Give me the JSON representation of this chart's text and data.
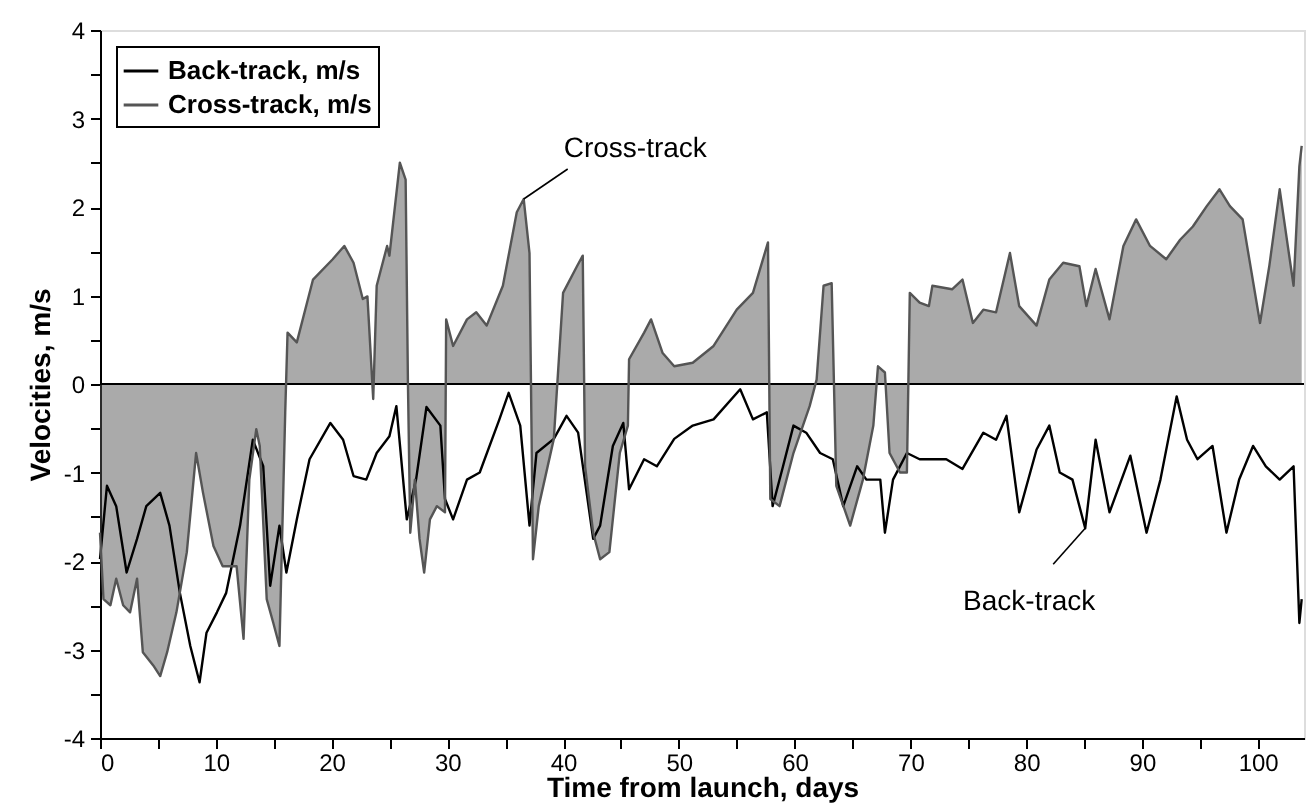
{
  "chart_data": {
    "type": "line",
    "xlabel": "Time from launch, days",
    "ylabel": "Velocities, m/s",
    "xlim": [
      0,
      104
    ],
    "ylim": [
      -4,
      4
    ],
    "xticks": [
      0,
      {
        "value": 5,
        "label": null
      },
      10,
      {
        "value": 15,
        "label": null
      },
      20,
      {
        "value": 25,
        "label": null
      },
      30,
      {
        "value": 35,
        "label": null
      },
      40,
      {
        "value": 45,
        "label": null
      },
      50,
      {
        "value": 55,
        "label": null
      },
      60,
      {
        "value": 65,
        "label": null
      },
      70,
      {
        "value": 75,
        "label": null
      },
      80,
      {
        "value": 85,
        "label": null
      },
      90,
      {
        "value": 95,
        "label": null
      },
      100
    ],
    "yticks": [
      -4,
      {
        "value": -3.5,
        "label": null
      },
      -3,
      {
        "value": -2.5,
        "label": null
      },
      -2,
      {
        "value": -1.5,
        "label": null
      },
      -1,
      {
        "value": -0.5,
        "label": null
      },
      0,
      {
        "value": 0.5,
        "label": null
      },
      1,
      {
        "value": 1.5,
        "label": null
      },
      2,
      {
        "value": 2.5,
        "label": null
      },
      3,
      {
        "value": 3.5,
        "label": null
      },
      4
    ],
    "grid": false,
    "legend": "top left",
    "marker": "none",
    "line_style": "solid",
    "ref_lines": [
      {
        "axis": "y",
        "value": 0,
        "label": null,
        "color": "#000000"
      }
    ],
    "annotations": [
      {
        "text": "Cross-track",
        "x": 36.6,
        "y": 2.09
      },
      {
        "text": "Back-track",
        "x": 85.1,
        "y": -1.63
      }
    ],
    "series": [
      {
        "name": "Back-track, m/s",
        "color": "#000000",
        "x": [
          0,
          0.6,
          1.4,
          2.3,
          3.2,
          4.0,
          5.2,
          6.0,
          6.9,
          7.8,
          8.6,
          9.2,
          10.1,
          10.9,
          12.1,
          13.2,
          14.1,
          14.7,
          15.5,
          16.1,
          17,
          18.1,
          19.9,
          21,
          21.9,
          23,
          23.9,
          25,
          25.6,
          26.5,
          27.3,
          28.2,
          29.4,
          29.8,
          30.5,
          31.7,
          32.8,
          34.5,
          35.3,
          36.3,
          37.1,
          37.7,
          39.2,
          40.3,
          41.3,
          42.6,
          43.2,
          44.3,
          45.2,
          45.7,
          47,
          48.1,
          49.6,
          51.2,
          53,
          55.3,
          56.4,
          57.6,
          58.1,
          59,
          59.9,
          61,
          62.2,
          63.3,
          64.2,
          65.4,
          66.2,
          67.4,
          67.8,
          68.5,
          69.7,
          70.8,
          73.1,
          74.5,
          76.3,
          77.4,
          78.3,
          79.4,
          80.9,
          82,
          82.9,
          84,
          85.1,
          86,
          87.2,
          89,
          90.4,
          91.6,
          93,
          93.9,
          94.8,
          96.1,
          97.3,
          98.4,
          99.6,
          100.7,
          101.9,
          103.1,
          103.6,
          103.8
        ],
        "values": [
          -1.98,
          -1.15,
          -1.38,
          -2.13,
          -1.75,
          -1.38,
          -1.23,
          -1.6,
          -2.36,
          -2.96,
          -3.37,
          -2.81,
          -2.58,
          -2.36,
          -1.6,
          -0.63,
          -0.93,
          -2.28,
          -1.6,
          -2.13,
          -1.53,
          -0.85,
          -0.44,
          -0.63,
          -1.04,
          -1.08,
          -0.78,
          -0.59,
          -0.25,
          -1.53,
          -1.08,
          -0.26,
          -0.47,
          -1.3,
          -1.53,
          -1.08,
          -1.0,
          -0.4,
          -0.1,
          -0.47,
          -1.6,
          -0.78,
          -0.62,
          -0.36,
          -0.55,
          -1.75,
          -1.6,
          -0.7,
          -0.44,
          -1.19,
          -0.85,
          -0.93,
          -0.62,
          -0.47,
          -0.4,
          -0.06,
          -0.4,
          -0.32,
          -1.38,
          -0.93,
          -0.47,
          -0.55,
          -0.78,
          -0.85,
          -1.38,
          -0.93,
          -1.08,
          -1.08,
          -1.68,
          -1.08,
          -0.78,
          -0.85,
          -0.85,
          -0.96,
          -0.55,
          -0.63,
          -0.36,
          -1.45,
          -0.74,
          -0.47,
          -1.0,
          -1.08,
          -1.63,
          -0.63,
          -1.45,
          -0.81,
          -1.68,
          -1.08,
          -0.14,
          -0.63,
          -0.85,
          -0.7,
          -1.68,
          -1.08,
          -0.7,
          -0.93,
          -1.08,
          -0.93,
          -2.7,
          -2.43
        ]
      },
      {
        "name": "Cross-track, m/s",
        "type": "area",
        "color": "#555555",
        "x": [
          0,
          0.3,
          0.9,
          1.4,
          2,
          2.6,
          3.2,
          3.7,
          4.6,
          5.2,
          5.8,
          6.6,
          7.5,
          8.3,
          8.9,
          9.8,
          10.6,
          11.8,
          12.4,
          12.9,
          13.5,
          13.8,
          14.4,
          14.97,
          15.5,
          16.0,
          16.2,
          17,
          18.4,
          20.1,
          21.1,
          21.9,
          22.7,
          23.1,
          23.6,
          23.9,
          24.8,
          25,
          25.9,
          26.4,
          26.6,
          26.8,
          27.2,
          27.6,
          28.0,
          28.5,
          29.1,
          29.8,
          29.9,
          30.5,
          31.7,
          32.5,
          33.4,
          34.8,
          36,
          36.6,
          37.1,
          37.4,
          37.9,
          39.2,
          40,
          41.2,
          41.7,
          41.9,
          42.6,
          43.2,
          44,
          44.9,
          45.6,
          45.7,
          47,
          47.6,
          48.6,
          49.6,
          51.2,
          53,
          55,
          56.4,
          57.7,
          57.9,
          58.7,
          59.9,
          61.3,
          61.9,
          62.5,
          63.2,
          63.6,
          64.8,
          65.9,
          66.8,
          67.2,
          67.8,
          68.2,
          69.1,
          69.7,
          69.95,
          70.8,
          71.6,
          71.9,
          73.6,
          74.5,
          75.4,
          76.3,
          77.4,
          78.6,
          79.4,
          80.9,
          82,
          83.2,
          84.6,
          85.2,
          86,
          87.2,
          88.4,
          89.5,
          90.7,
          92.1,
          93.3,
          94.4,
          95.6,
          96.7,
          97.6,
          98.7,
          100.2,
          101,
          101.9,
          102.6,
          103.1,
          103.6,
          103.8
        ],
        "values": [
          -1.68,
          -2.43,
          -2.5,
          -2.2,
          -2.5,
          -2.58,
          -2.2,
          -3.03,
          -3.18,
          -3.3,
          -3.03,
          -2.58,
          -1.9,
          -0.78,
          -1.23,
          -1.83,
          -2.06,
          -2.06,
          -2.88,
          -1.08,
          -0.51,
          -0.7,
          -2.43,
          -2.7,
          -2.96,
          -0.32,
          0.58,
          0.47,
          1.18,
          1.41,
          1.56,
          1.37,
          0.96,
          0.99,
          -0.17,
          1.11,
          1.56,
          1.45,
          2.5,
          2.31,
          0,
          -1.68,
          -1.08,
          -1.75,
          -2.13,
          -1.53,
          -1.38,
          -1.45,
          0.73,
          0.43,
          0.73,
          0.81,
          0.66,
          1.11,
          1.94,
          2.09,
          1.48,
          -1.98,
          -1.38,
          -0.62,
          1.03,
          1.33,
          1.45,
          -0.93,
          -1.68,
          -1.98,
          -1.9,
          -0.78,
          -0.47,
          0.28,
          0.58,
          0.73,
          0.35,
          0.2,
          0.24,
          0.43,
          0.84,
          1.03,
          1.6,
          -1.3,
          -1.38,
          -0.78,
          -0.25,
          0.05,
          1.11,
          1.14,
          -1.15,
          -1.6,
          -1.08,
          -0.47,
          0.2,
          0.13,
          -0.78,
          -1.0,
          -1.0,
          1.03,
          0.92,
          0.88,
          1.11,
          1.07,
          1.18,
          0.69,
          0.84,
          0.81,
          1.48,
          0.88,
          0.66,
          1.18,
          1.37,
          1.33,
          0.88,
          1.3,
          0.73,
          1.56,
          1.86,
          1.56,
          1.41,
          1.63,
          1.78,
          2.01,
          2.2,
          2.01,
          1.86,
          0.69,
          1.33,
          2.2,
          1.56,
          1.11,
          2.46,
          2.69
        ]
      }
    ]
  }
}
